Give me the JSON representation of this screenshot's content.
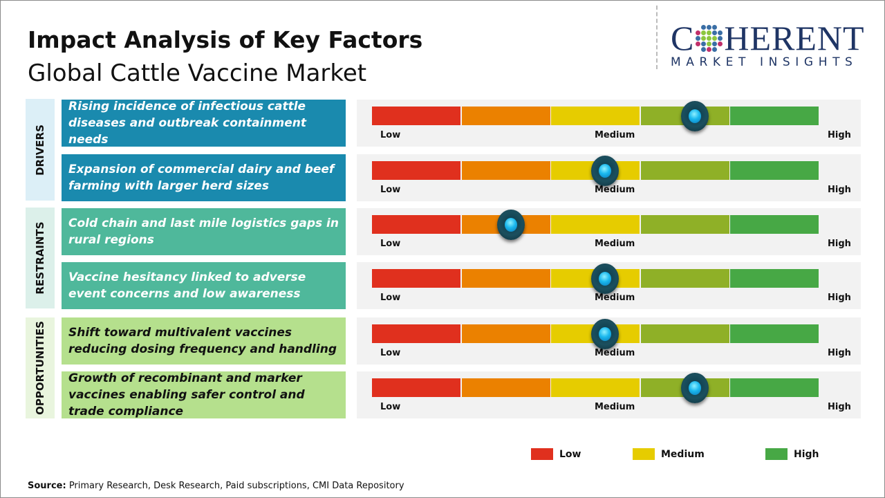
{
  "header": {
    "title": "Impact Analysis of Key Factors",
    "subtitle": "Global Cattle Vaccine Market"
  },
  "logo": {
    "line1": "COHERENT",
    "line2": "MARKET INSIGHTS"
  },
  "colors": {
    "low": "#e0301e",
    "low_medium": "#eb8100",
    "medium": "#e6cc00",
    "medium_high": "#8fb027",
    "high": "#47a845",
    "drivers": "#1a8aae",
    "restraints": "#4fb89b",
    "opportunities": "#b5e08d"
  },
  "chart_data": {
    "type": "gauge",
    "scale_labels": [
      "Low",
      "Medium",
      "High"
    ],
    "scale_range": [
      0,
      1
    ],
    "groups": [
      {
        "name": "DRIVERS",
        "factors": [
          {
            "text": "Rising incidence of infectious cattle diseases and outbreak containment needs",
            "impact": 0.72
          },
          {
            "text": "Expansion of commercial dairy and beef farming with larger herd sizes",
            "impact": 0.52
          }
        ]
      },
      {
        "name": "RESTRAINTS",
        "factors": [
          {
            "text": "Cold chain and last mile logistics gaps in rural regions",
            "impact": 0.31
          },
          {
            "text": "Vaccine hesitancy linked to adverse event concerns and low awareness",
            "impact": 0.52
          }
        ]
      },
      {
        "name": "OPPORTUNITIES",
        "factors": [
          {
            "text": "Shift toward multivalent vaccines reducing dosing frequency and handling",
            "impact": 0.52
          },
          {
            "text": "Growth of recombinant and marker vaccines enabling safer control and trade compliance",
            "impact": 0.72
          }
        ]
      }
    ],
    "legend": [
      {
        "label": "Low",
        "color": "#e0301e"
      },
      {
        "label": "Medium",
        "color": "#e6cc00"
      },
      {
        "label": "High",
        "color": "#47a845"
      }
    ]
  },
  "footer": {
    "source_label": "Source:",
    "source_text": " Primary Research, Desk Research, Paid subscriptions, CMI Data Repository"
  }
}
